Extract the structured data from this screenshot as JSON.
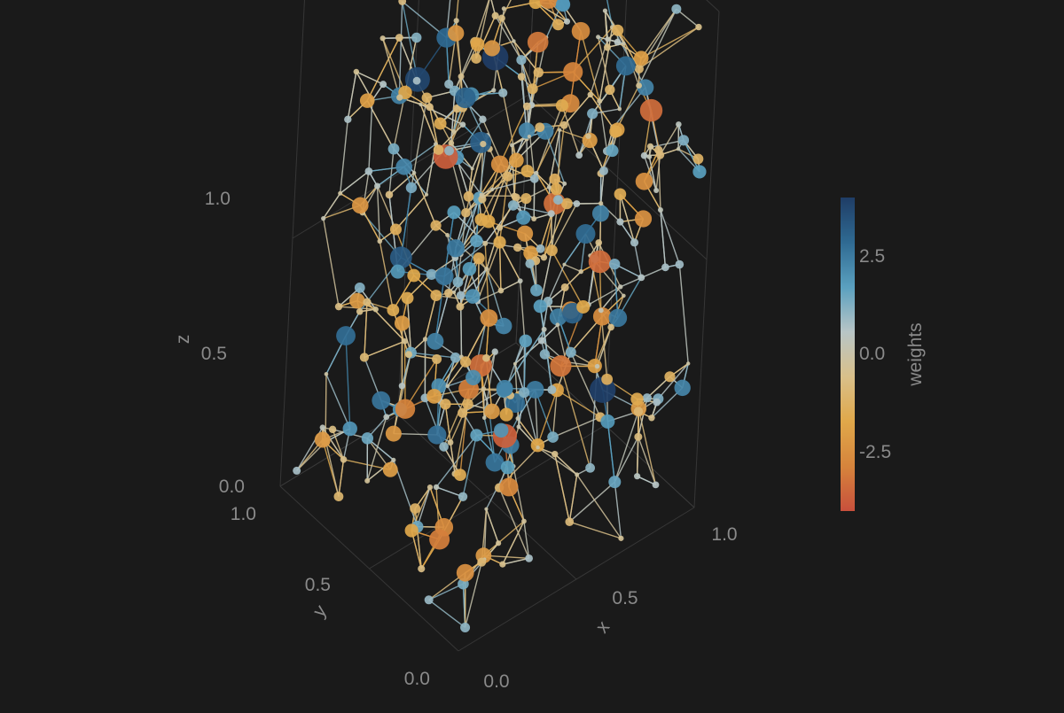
{
  "chart_data": {
    "type": "scatter",
    "subtype": "3d-network",
    "title": "",
    "axes": {
      "x": {
        "label": "x",
        "range": [
          0,
          1
        ],
        "ticks": [
          0.0,
          0.5,
          1.0
        ],
        "tick_labels": [
          "0.0",
          "0.5",
          "1.0"
        ]
      },
      "y": {
        "label": "y",
        "range": [
          0,
          1
        ],
        "ticks": [
          0.0,
          0.5,
          1.0
        ],
        "tick_labels": [
          "0.0",
          "0.5",
          "1.0"
        ]
      },
      "z": {
        "label": "z",
        "range": [
          0,
          1
        ],
        "ticks": [
          0.0,
          0.5,
          1.0
        ],
        "tick_labels": [
          "0.0",
          "0.5",
          "1.0"
        ]
      }
    },
    "grid": true,
    "colorbar": {
      "label": "weights",
      "range": [
        -4,
        4
      ],
      "ticks": [
        2.5,
        0.0,
        -2.5
      ],
      "tick_labels": [
        "2.5",
        "0.0",
        "-2.5"
      ],
      "colors": [
        "#1f3d66",
        "#2f6a92",
        "#5aa0bf",
        "#b8c5c6",
        "#d9c08a",
        "#e0a84a",
        "#d6843c",
        "#c8503c"
      ]
    },
    "node_count": 400,
    "edge_neighbors": 3,
    "seed": 7
  },
  "colors": {
    "background": "#1a1a1a",
    "grid": "#3a3a3a",
    "tick_text": "#8a8a8a",
    "axis_label": "#8a8a8a"
  }
}
